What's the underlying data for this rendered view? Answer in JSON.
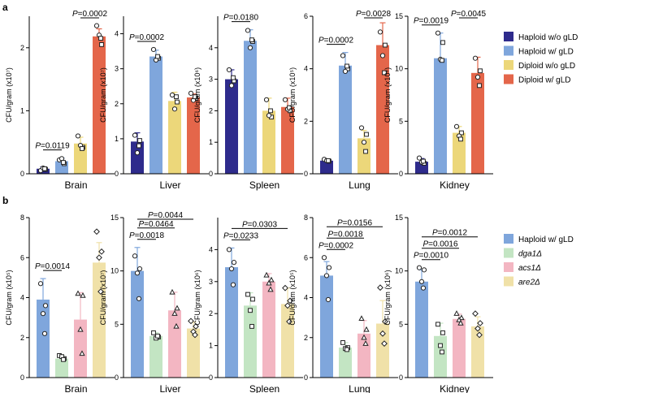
{
  "panels": [
    {
      "letter": "a"
    },
    {
      "letter": "b"
    }
  ],
  "legends": [
    {
      "entries": [
        {
          "name": "Haploid w/o gLD",
          "color": "#2e2b8c",
          "italic": false
        },
        {
          "name": "Haploid w/ gLD",
          "color": "#7fa6dc",
          "italic": false
        },
        {
          "name": "Diploid w/o gLD",
          "color": "#ecd77a",
          "italic": false
        },
        {
          "name": "Diploid w/ gLD",
          "color": "#e4664a",
          "italic": false
        }
      ]
    },
    {
      "entries": [
        {
          "name": "Haploid w/ gLD",
          "color": "#7fa6dc",
          "italic": false
        },
        {
          "name": "dga1Δ",
          "color": "#c3e5c3",
          "italic": true
        },
        {
          "name": "acs1Δ",
          "color": "#f3b6c2",
          "italic": true
        },
        {
          "name": "are2Δ",
          "color": "#f0e1a8",
          "italic": true
        }
      ]
    }
  ],
  "chart_data": [
    {
      "type": "bar",
      "row": "a",
      "title": "",
      "xlabel": "Brain",
      "ylabel": "CFU/gram (x10⁷)",
      "ylim": [
        0,
        2.5
      ],
      "yticks": [
        "0",
        "1",
        "2"
      ],
      "ytick_values": [
        0,
        1,
        2
      ],
      "series": [
        {
          "name": "Haploid w/o gLD",
          "color": "#2e2b8c",
          "value": 0.08,
          "error": 0.03,
          "points": [
            0.05,
            0.07,
            0.09,
            0.08
          ]
        },
        {
          "name": "Haploid w/ gLD",
          "color": "#7fa6dc",
          "value": 0.2,
          "error": 0.05,
          "points": [
            0.22,
            0.16,
            0.24,
            0.18
          ]
        },
        {
          "name": "Diploid w/o gLD",
          "color": "#ecd77a",
          "value": 0.48,
          "error": 0.1,
          "points": [
            0.6,
            0.42,
            0.45,
            0.4
          ]
        },
        {
          "name": "Diploid w/ gLD",
          "color": "#e4664a",
          "value": 2.18,
          "error": 0.12,
          "points": [
            2.35,
            2.05,
            2.2,
            2.15
          ]
        }
      ],
      "comparisons": [
        {
          "from": 0,
          "to": 1,
          "text": "P=0.0119"
        },
        {
          "from": 2,
          "to": 3,
          "text": "P=0.0002"
        }
      ]
    },
    {
      "type": "bar",
      "row": "a",
      "title": "",
      "xlabel": "Liver",
      "ylabel": "CFU/gram (x10⁷)",
      "ylim": [
        0,
        4.5
      ],
      "yticks": [
        "0",
        "1",
        "2",
        "3",
        "4"
      ],
      "ytick_values": [
        0,
        1,
        2,
        3,
        4
      ],
      "series": [
        {
          "name": "Haploid w/o gLD",
          "color": "#2e2b8c",
          "value": 0.92,
          "error": 0.25,
          "points": [
            1.1,
            0.95,
            0.6,
            0.8
          ]
        },
        {
          "name": "Haploid w/ gLD",
          "color": "#7fa6dc",
          "value": 3.35,
          "error": 0.18,
          "points": [
            3.55,
            3.3,
            3.25,
            3.35
          ]
        },
        {
          "name": "Diploid w/o gLD",
          "color": "#ecd77a",
          "value": 2.08,
          "error": 0.25,
          "points": [
            2.25,
            2.05,
            1.85,
            2.2
          ]
        },
        {
          "name": "Diploid w/ gLD",
          "color": "#e4664a",
          "value": 2.18,
          "error": 0.1,
          "points": [
            2.3,
            2.15,
            2.1,
            2.2
          ]
        }
      ],
      "comparisons": [
        {
          "from": 0,
          "to": 1,
          "text": "P=0.0002"
        }
      ]
    },
    {
      "type": "bar",
      "row": "a",
      "title": "",
      "xlabel": "Spleen",
      "ylabel": "CFU/gram (x10⁶)",
      "ylim": [
        0,
        5
      ],
      "yticks": [
        "0",
        "1",
        "2",
        "3",
        "4"
      ],
      "ytick_values": [
        0,
        1,
        2,
        3,
        4
      ],
      "series": [
        {
          "name": "Haploid w/o gLD",
          "color": "#2e2b8c",
          "value": 3.0,
          "error": 0.3,
          "points": [
            3.3,
            2.95,
            2.8,
            3.05
          ]
        },
        {
          "name": "Haploid w/ gLD",
          "color": "#7fa6dc",
          "value": 4.22,
          "error": 0.35,
          "points": [
            4.55,
            4.2,
            4.0,
            4.25
          ]
        },
        {
          "name": "Diploid w/o gLD",
          "color": "#ecd77a",
          "value": 2.0,
          "error": 0.4,
          "points": [
            2.35,
            1.8,
            1.85,
            2.0
          ]
        },
        {
          "name": "Diploid w/ gLD",
          "color": "#e4664a",
          "value": 2.12,
          "error": 0.28,
          "points": [
            2.35,
            2.0,
            2.05,
            2.1
          ]
        }
      ],
      "comparisons": [
        {
          "from": 0,
          "to": 1,
          "text": "P=0.0180"
        }
      ]
    },
    {
      "type": "bar",
      "row": "a",
      "title": "",
      "xlabel": "Lung",
      "ylabel": "CFU/gram (x10⁵)",
      "ylim": [
        0,
        6
      ],
      "yticks": [
        "0",
        "2",
        "4",
        "6"
      ],
      "ytick_values": [
        0,
        2,
        4,
        6
      ],
      "series": [
        {
          "name": "Haploid w/o gLD",
          "color": "#2e2b8c",
          "value": 0.5,
          "error": 0.05,
          "points": [
            0.55,
            0.48,
            0.5,
            0.5
          ]
        },
        {
          "name": "Haploid w/ gLD",
          "color": "#7fa6dc",
          "value": 4.12,
          "error": 0.5,
          "points": [
            4.5,
            4.0,
            3.9,
            4.1
          ]
        },
        {
          "name": "Diploid w/o gLD",
          "color": "#ecd77a",
          "value": 1.35,
          "error": 0.3,
          "points": [
            1.75,
            1.5,
            1.2,
            0.85
          ]
        },
        {
          "name": "Diploid w/ gLD",
          "color": "#e4664a",
          "value": 4.9,
          "error": 0.85,
          "points": [
            5.4,
            4.9,
            4.5,
            3.85
          ]
        }
      ],
      "comparisons": [
        {
          "from": 0,
          "to": 1,
          "text": "P=0.0002"
        },
        {
          "from": 2,
          "to": 3,
          "text": "P=0.0028"
        }
      ]
    },
    {
      "type": "bar",
      "row": "a",
      "title": "",
      "xlabel": "Kidney",
      "ylabel": "CFU/gram (x10⁶)",
      "ylim": [
        0,
        15
      ],
      "yticks": [
        "0",
        "5",
        "10",
        "15"
      ],
      "ytick_values": [
        0,
        5,
        10,
        15
      ],
      "series": [
        {
          "name": "Haploid w/o gLD",
          "color": "#2e2b8c",
          "value": 1.15,
          "error": 0.3,
          "points": [
            1.5,
            1.0,
            1.1,
            1.2
          ]
        },
        {
          "name": "Haploid w/ gLD",
          "color": "#7fa6dc",
          "value": 11.0,
          "error": 2.4,
          "points": [
            13.4,
            12.5,
            10.9,
            10.8
          ]
        },
        {
          "name": "Diploid w/o gLD",
          "color": "#ecd77a",
          "value": 3.9,
          "error": 0.6,
          "points": [
            4.5,
            3.9,
            3.6,
            3.3
          ]
        },
        {
          "name": "Diploid w/ gLD",
          "color": "#e4664a",
          "value": 9.6,
          "error": 1.5,
          "points": [
            11.0,
            9.8,
            9.2,
            8.4
          ]
        }
      ],
      "comparisons": [
        {
          "from": 0,
          "to": 1,
          "text": "P=0.0019"
        },
        {
          "from": 2,
          "to": 3,
          "text": "P=0.0045"
        }
      ]
    },
    {
      "type": "bar",
      "row": "b",
      "title": "",
      "xlabel": "Brain",
      "ylabel": "CFU/gram (x10⁵)",
      "ylim": [
        0,
        8
      ],
      "yticks": [
        "0",
        "2",
        "4",
        "6",
        "8"
      ],
      "ytick_values": [
        0,
        2,
        4,
        6,
        8
      ],
      "series": [
        {
          "name": "Haploid w/ gLD",
          "color": "#7fa6dc",
          "value": 3.9,
          "error": 1.05,
          "points": [
            4.7,
            3.6,
            3.2,
            2.2
          ]
        },
        {
          "name": "dga1Δ",
          "color": "#c3e5c3",
          "value": 0.95,
          "error": 0.15,
          "points": [
            1.1,
            0.95,
            1.05,
            0.9
          ]
        },
        {
          "name": "acs1Δ",
          "color": "#f3b6c2",
          "value": 2.9,
          "error": 1.35,
          "points": [
            4.2,
            4.1,
            2.4,
            1.2
          ]
        },
        {
          "name": "are2Δ",
          "color": "#f0e1a8",
          "value": 5.75,
          "error": 1.0,
          "points": [
            7.3,
            6.3,
            6.0,
            4.3
          ]
        }
      ],
      "comparisons": [
        {
          "from": 0,
          "to": 1,
          "text": "P=0.0014"
        }
      ]
    },
    {
      "type": "bar",
      "row": "b",
      "title": "",
      "xlabel": "Liver",
      "ylabel": "CFU/gram (x10⁷)",
      "ylim": [
        0,
        15
      ],
      "yticks": [
        "0",
        "5",
        "10",
        "15"
      ],
      "ytick_values": [
        0,
        5,
        10,
        15
      ],
      "series": [
        {
          "name": "Haploid w/ gLD",
          "color": "#7fa6dc",
          "value": 10.0,
          "error": 2.2,
          "points": [
            11.4,
            10.2,
            9.8,
            7.4
          ]
        },
        {
          "name": "dga1Δ",
          "color": "#c3e5c3",
          "value": 3.9,
          "error": 0.3,
          "points": [
            4.2,
            3.8,
            3.7,
            3.9
          ]
        },
        {
          "name": "acs1Δ",
          "color": "#f3b6c2",
          "value": 6.3,
          "error": 1.7,
          "points": [
            8.0,
            6.5,
            6.0,
            4.8
          ]
        },
        {
          "name": "are2Δ",
          "color": "#f0e1a8",
          "value": 4.6,
          "error": 0.6,
          "points": [
            5.3,
            4.8,
            4.3,
            4.0
          ]
        }
      ],
      "comparisons": [
        {
          "from": 0,
          "to": 1,
          "text": "P=0.0018"
        },
        {
          "from": 0,
          "to": 2,
          "text": "P=0.0464"
        },
        {
          "from": 0,
          "to": 3,
          "text": "P=0.0044"
        }
      ]
    },
    {
      "type": "bar",
      "row": "b",
      "title": "",
      "xlabel": "Spleen",
      "ylabel": "CFU/gram (x10⁶)",
      "ylim": [
        0,
        5
      ],
      "yticks": [
        "0",
        "1",
        "2",
        "3",
        "4"
      ],
      "ytick_values": [
        0,
        1,
        2,
        3,
        4
      ],
      "series": [
        {
          "name": "Haploid w/ gLD",
          "color": "#7fa6dc",
          "value": 3.45,
          "error": 0.6,
          "points": [
            4.0,
            3.6,
            3.4,
            2.9
          ]
        },
        {
          "name": "dga1Δ",
          "color": "#c3e5c3",
          "value": 2.25,
          "error": 0.4,
          "points": [
            2.6,
            2.45,
            2.1,
            1.6
          ]
        },
        {
          "name": "acs1Δ",
          "color": "#f3b6c2",
          "value": 3.0,
          "error": 0.25,
          "points": [
            3.2,
            3.05,
            2.95,
            2.75
          ]
        },
        {
          "name": "are2Δ",
          "color": "#f0e1a8",
          "value": 2.3,
          "error": 0.5,
          "points": [
            2.8,
            2.4,
            2.25,
            1.75
          ]
        }
      ],
      "comparisons": [
        {
          "from": 0,
          "to": 1,
          "text": "P=0.0233"
        },
        {
          "from": 0,
          "to": 3,
          "text": "P=0.0303"
        }
      ]
    },
    {
      "type": "bar",
      "row": "b",
      "title": "",
      "xlabel": "Lung",
      "ylabel": "CFU/gram (x10⁵)",
      "ylim": [
        0,
        8
      ],
      "yticks": [
        "0",
        "2",
        "4",
        "6",
        "8"
      ],
      "ytick_values": [
        0,
        2,
        4,
        6,
        8
      ],
      "series": [
        {
          "name": "Haploid w/ gLD",
          "color": "#7fa6dc",
          "value": 5.1,
          "error": 0.7,
          "points": [
            6.0,
            5.5,
            5.1,
            3.9
          ]
        },
        {
          "name": "dga1Δ",
          "color": "#c3e5c3",
          "value": 1.5,
          "error": 0.25,
          "points": [
            1.75,
            1.5,
            1.45,
            1.4
          ]
        },
        {
          "name": "acs1Δ",
          "color": "#f3b6c2",
          "value": 2.2,
          "error": 0.65,
          "points": [
            2.95,
            2.4,
            2.0,
            1.7
          ]
        },
        {
          "name": "are2Δ",
          "color": "#f0e1a8",
          "value": 2.7,
          "error": 1.15,
          "points": [
            4.5,
            2.8,
            2.2,
            1.7
          ]
        }
      ],
      "comparisons": [
        {
          "from": 0,
          "to": 1,
          "text": "P=0.0002"
        },
        {
          "from": 0,
          "to": 2,
          "text": "P=0.0018"
        },
        {
          "from": 0,
          "to": 3,
          "text": "P=0.0156"
        }
      ]
    },
    {
      "type": "bar",
      "row": "b",
      "title": "",
      "xlabel": "Kidney",
      "ylabel": "CFU/gram (x10⁶)",
      "ylim": [
        0,
        15
      ],
      "yticks": [
        "0",
        "5",
        "10",
        "15"
      ],
      "ytick_values": [
        0,
        5,
        10,
        15
      ],
      "series": [
        {
          "name": "Haploid w/ gLD",
          "color": "#7fa6dc",
          "value": 9.0,
          "error": 1.1,
          "points": [
            10.3,
            10.1,
            9.0,
            8.4
          ]
        },
        {
          "name": "dga1Δ",
          "color": "#c3e5c3",
          "value": 3.9,
          "error": 1.2,
          "points": [
            5.0,
            4.2,
            3.0,
            2.4
          ]
        },
        {
          "name": "acs1Δ",
          "color": "#f3b6c2",
          "value": 5.5,
          "error": 0.45,
          "points": [
            6.0,
            5.6,
            5.4,
            5.1
          ]
        },
        {
          "name": "are2Δ",
          "color": "#f0e1a8",
          "value": 4.8,
          "error": 0.9,
          "points": [
            6.0,
            5.1,
            4.6,
            4.0
          ]
        }
      ],
      "comparisons": [
        {
          "from": 0,
          "to": 1,
          "text": "P=0.0010"
        },
        {
          "from": 0,
          "to": 2,
          "text": "P=0.0016"
        },
        {
          "from": 0,
          "to": 3,
          "text": "P=0.0012"
        }
      ]
    }
  ]
}
